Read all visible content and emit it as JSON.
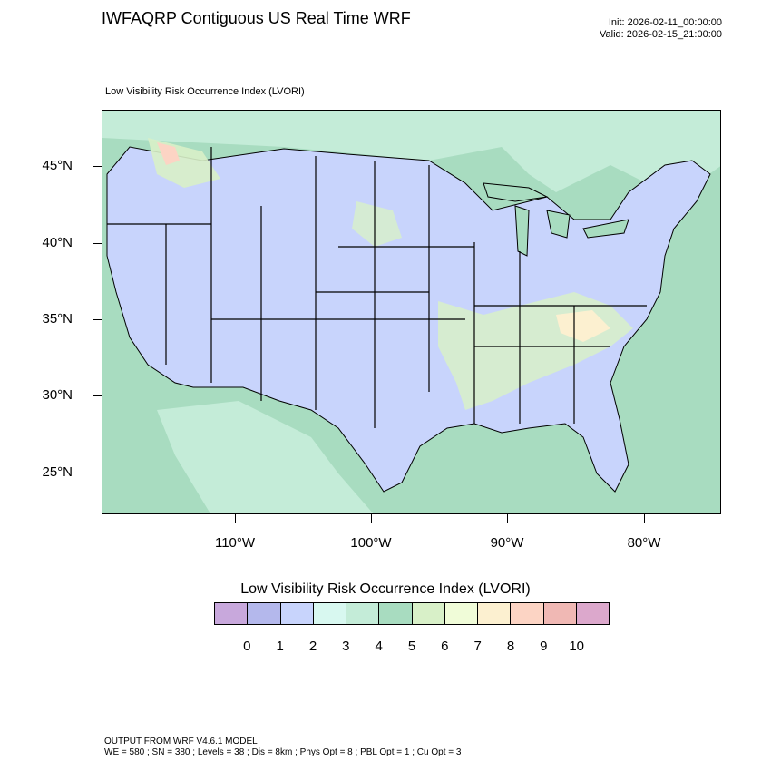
{
  "title": "IWFAQRP Contiguous US Real Time WRF",
  "init_line": "Init: 2026-02-11_00:00:00",
  "valid_line": "Valid: 2026-02-15_21:00:00",
  "subtitle": "Low Visibility Risk Occurrence Index   (LVORI)",
  "lat_labels": [
    "45°N",
    "40°N",
    "35°N",
    "30°N",
    "25°N"
  ],
  "lon_labels": [
    "110°W",
    "100°W",
    "90°W",
    "80°W"
  ],
  "legend": {
    "title": "Low Visibility Risk Occurrence Index  (LVORI)",
    "labels": [
      "0",
      "1",
      "2",
      "3",
      "4",
      "5",
      "6",
      "7",
      "8",
      "9",
      "10"
    ],
    "colors": [
      "#c8a8dc",
      "#b4b8ec",
      "#c8d4fc",
      "#d8f8f0",
      "#c4ecd8",
      "#a8dcc0",
      "#d8f0c8",
      "#f0fcd8",
      "#fcf0d0",
      "#fcd4c4",
      "#f0b8b4",
      "#dca8cc"
    ]
  },
  "footer_line1": "OUTPUT FROM WRF V4.6.1 MODEL",
  "footer_line2": "WE = 580 ; SN = 380 ; Levels = 38 ; Dis = 8km ; Phys Opt = 8 ; PBL Opt = 1 ; Cu Opt = 3",
  "map_colors": {
    "ocean": "#a8dcc0",
    "land_low": "#c8d4fc",
    "land_mid": "#d8f0c8",
    "land_high": "#fcd4c4",
    "water_fill": "#c4ecd8"
  }
}
